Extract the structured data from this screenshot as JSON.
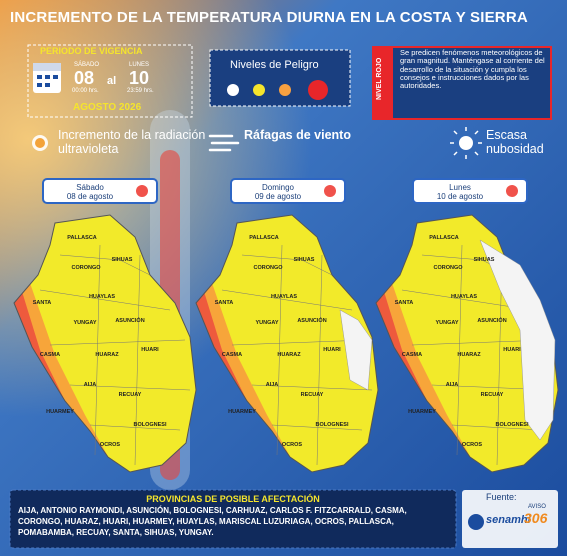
{
  "header": {
    "title": "INCREMENTO DE LA TEMPERATURA DIURNA EN LA COSTA Y SIERRA"
  },
  "validity": {
    "label": "PERIODO DE VIGENCIA",
    "start_day": "SÁBADO",
    "start_date": "08",
    "start_time": "00:00 hrs.",
    "connector": "al",
    "end_day": "LUNES",
    "end_date": "10",
    "end_time": "23:59 hrs.",
    "month": "AGOSTO 2026"
  },
  "danger_levels": {
    "title": "Niveles de Peligro"
  },
  "alert": {
    "level": "NIVEL ROJO",
    "message": "Se predicen fenómenos meteorológicos de gran magnitud. Manténgase al corriente del desarrollo de la situación y cumpla los consejos e instrucciones dados por las autoridades."
  },
  "hazards": [
    "Incremento de la radiación ultravioleta",
    "Ráfagas de viento",
    "Escasa nubosidad"
  ],
  "maps": [
    {
      "day": "Sábado",
      "date": "08 de agosto"
    },
    {
      "day": "Domingo",
      "date": "09 de agosto"
    },
    {
      "day": "Lunes",
      "date": "10 de agosto"
    }
  ],
  "map_labels": [
    "PALLASCA",
    "CORONGO",
    "SIHUAS",
    "HUAYLAS",
    "SANTA",
    "YUNGAY",
    "ASUNCIÓN",
    "CASMA",
    "HUARAZ",
    "HUARI",
    "AIJA",
    "RECUAY",
    "HUARMEY",
    "BOLOGNESI",
    "OCROS"
  ],
  "affected": {
    "title": "PROVINCIAS DE POSIBLE AFECTACIÓN",
    "list": "AIJA, ANTONIO RAYMONDI, ASUNCIÓN, BOLOGNESI, CARHUAZ, CARLOS F. FITZCARRALD, CASMA, CORONGO, HUARAZ, HUARI, HUARMEY, HUAYLAS, MARISCAL LUZURIAGA, OCROS, PALLASCA, POMABAMBA, RECUAY, SANTA, SIHUAS, YUNGAY."
  },
  "source": {
    "label": "Fuente:",
    "org": "senamhi",
    "notice_label": "AVISO",
    "notice_number": "306"
  }
}
